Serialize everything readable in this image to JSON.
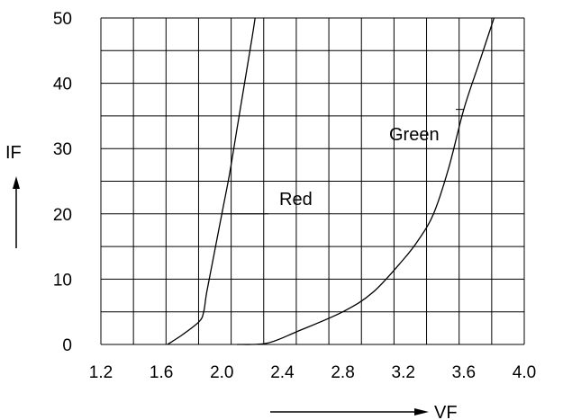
{
  "chart_data": {
    "type": "line",
    "title": "",
    "xlabel": "VF",
    "ylabel": "IF",
    "xlim": [
      1.2,
      4.0
    ],
    "ylim": [
      0,
      50
    ],
    "x_ticks": [
      "1.2",
      "1.6",
      "2.0",
      "2.4",
      "2.8",
      "3.2",
      "3.6",
      "4.0"
    ],
    "y_ticks": [
      "0",
      "10",
      "20",
      "30",
      "40",
      "50"
    ],
    "grid": true,
    "legend": "none",
    "series": [
      {
        "name": "Red",
        "x": [
          1.64,
          1.74,
          1.85,
          1.88,
          1.9,
          1.95,
          2.0,
          2.05,
          2.1,
          2.15,
          2.2,
          2.22
        ],
        "y": [
          0,
          1.5,
          3.5,
          5,
          8,
          14,
          20,
          26,
          33,
          40,
          47,
          50
        ]
      },
      {
        "name": "Green",
        "x": [
          2.1,
          2.3,
          2.5,
          2.8,
          3.0,
          3.2,
          3.3,
          3.4,
          3.5,
          3.6,
          3.7,
          3.8
        ],
        "y": [
          0,
          0.2,
          2,
          5,
          8,
          13,
          16,
          20,
          27,
          36,
          43,
          50
        ]
      }
    ]
  }
}
